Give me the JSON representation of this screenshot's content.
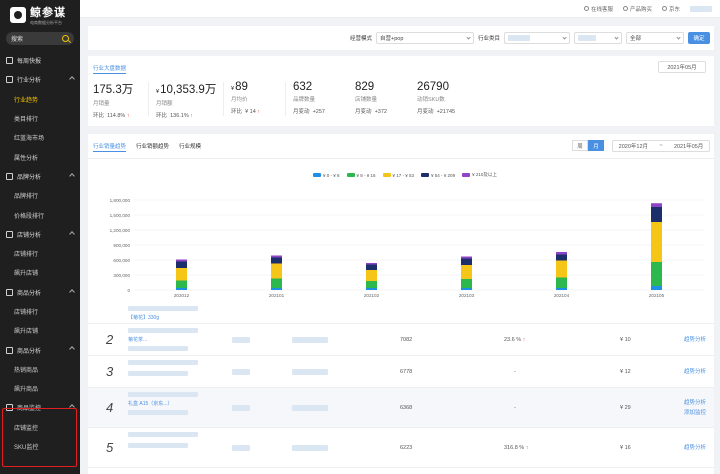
{
  "sidebar": {
    "logo_title": "鲸参谋",
    "logo_sub": "电商数据分析平台",
    "search_label": "搜索",
    "items": [
      {
        "label": "每周快报",
        "type": "group"
      },
      {
        "label": "行业分析",
        "type": "group"
      },
      {
        "label": "行业趋势",
        "type": "sub",
        "active": true
      },
      {
        "label": "类目排行",
        "type": "sub"
      },
      {
        "label": "红蓝海市场",
        "type": "sub"
      },
      {
        "label": "属性分析",
        "type": "sub"
      },
      {
        "label": "品牌分析",
        "type": "group"
      },
      {
        "label": "品牌排行",
        "type": "sub"
      },
      {
        "label": "价格段排行",
        "type": "sub"
      },
      {
        "label": "店铺分析",
        "type": "group"
      },
      {
        "label": "店铺排行",
        "type": "sub"
      },
      {
        "label": "飙升店铺",
        "type": "sub"
      },
      {
        "label": "商品分析",
        "type": "group"
      },
      {
        "label": "店铺排行",
        "type": "sub"
      },
      {
        "label": "飙升店铺",
        "type": "sub"
      },
      {
        "label": "商品分析",
        "type": "group"
      },
      {
        "label": "热销商品",
        "type": "sub"
      },
      {
        "label": "飙升商品",
        "type": "sub"
      },
      {
        "label": "商品监控",
        "type": "group"
      },
      {
        "label": "店铺监控",
        "type": "sub"
      },
      {
        "label": "SKU监控",
        "type": "sub"
      }
    ]
  },
  "topbar": {
    "links": [
      "在线客服",
      "产品购买",
      "京东"
    ]
  },
  "filters": {
    "mode_label": "经营模式",
    "mode_value": "自营+pop",
    "category_label": "行业类目",
    "all_value": "全部",
    "confirm": "确定"
  },
  "stats": {
    "tab": "行业大盘数据",
    "month": "2021年05月",
    "items": [
      {
        "value": "175.3万",
        "prefix": "",
        "label": "月销量",
        "cmp_label": "环比",
        "cmp": "114.8%",
        "up": true
      },
      {
        "value": "10,353.9万",
        "prefix": "¥",
        "label": "月销额",
        "cmp_label": "环比",
        "cmp": "136.1%",
        "up": true
      },
      {
        "value": "89",
        "prefix": "¥",
        "label": "月均价",
        "cmp_label": "环比",
        "cmp": "¥ 14",
        "up": true
      },
      {
        "value": "632",
        "prefix": "",
        "label": "品牌数量",
        "cmp_label": "月变动",
        "cmp": "+257",
        "up": false
      },
      {
        "value": "829",
        "prefix": "",
        "label": "店铺数量",
        "cmp_label": "月变动",
        "cmp": "+372",
        "up": false
      },
      {
        "value": "26790",
        "prefix": "",
        "label": "动销SKU数",
        "cmp_label": "月变动",
        "cmp": "+21745",
        "up": false
      }
    ]
  },
  "chart_panel": {
    "tabs": [
      "行业销量趋势",
      "行业销额趋势",
      "行业规模"
    ],
    "seg": [
      "周",
      "月"
    ],
    "range_start": "2020年12月",
    "range_sep": "~",
    "range_end": "2021年05月"
  },
  "chart_data": {
    "type": "bar",
    "stacked": true,
    "categories": [
      "202012",
      "202101",
      "202102",
      "202103",
      "202104",
      "202105"
    ],
    "series": [
      {
        "name": "¥ 0 - ¥ 8",
        "color": "#1e8fe6",
        "values": [
          40000,
          40000,
          40000,
          40000,
          40000,
          80000
        ]
      },
      {
        "name": "¥ 8 - ¥ 16",
        "color": "#2db84d",
        "values": [
          150000,
          190000,
          140000,
          180000,
          210000,
          480000
        ]
      },
      {
        "name": "¥ 17 - ¥ 53",
        "color": "#f5c518",
        "values": [
          250000,
          300000,
          220000,
          280000,
          340000,
          800000
        ]
      },
      {
        "name": "¥ 54 - ¥ 209",
        "color": "#1c2f6b",
        "values": [
          130000,
          120000,
          110000,
          130000,
          120000,
          300000
        ]
      },
      {
        "name": "¥ 210及以上",
        "color": "#8e44c7",
        "values": [
          40000,
          40000,
          30000,
          40000,
          50000,
          75000
        ]
      }
    ],
    "yticks": [
      "1,800,000",
      "1,500,000",
      "1,200,000",
      "900,000",
      "600,000",
      "300,000",
      "0"
    ],
    "ylim": [
      0,
      1800000
    ],
    "grid": true,
    "legend": "top-center"
  },
  "table": {
    "rows": [
      {
        "rank": "",
        "title": "【菊花】330g",
        "sales": "",
        "share": "",
        "price": "",
        "actions": []
      },
      {
        "rank": "2",
        "title": "菊花茶...",
        "sales": "7082",
        "share": "23.6 %",
        "price": "¥ 10",
        "actions": [
          "趋势分析"
        ]
      },
      {
        "rank": "3",
        "title": "",
        "sales": "6778",
        "share": "-",
        "price": "¥ 12",
        "actions": [
          "趋势分析"
        ]
      },
      {
        "rank": "4",
        "title": "礼盒 A15（京东...）",
        "sales": "6368",
        "share": "-",
        "price": "¥ 29",
        "actions": [
          "趋势分析",
          "添加监控"
        ]
      },
      {
        "rank": "5",
        "title": "",
        "sales": "6223",
        "share": "316.8 %",
        "price": "¥ 16",
        "actions": [
          "趋势分析"
        ]
      }
    ]
  }
}
